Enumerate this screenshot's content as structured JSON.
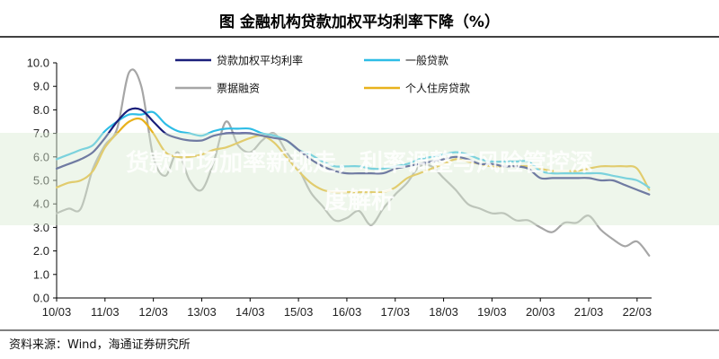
{
  "header": {
    "title": "图  金融机构贷款加权平均利率下降（%）"
  },
  "footer": {
    "source": "资料来源：Wind，海通证券研究所"
  },
  "overlay": {
    "line1": "货款市场加率新规走，利率调整与风险管控深",
    "line2": "度解析"
  },
  "colors": {
    "weighted": "#1a1f7a",
    "general": "#2ebde6",
    "bill": "#a6a6a6",
    "mortgage": "#e8b21c",
    "axis": "#000000",
    "overlay_band": "#d9ead3"
  },
  "chart_data": {
    "type": "line",
    "title": "图  金融机构贷款加权平均利率下降（%）",
    "xlabel": "",
    "ylabel": "",
    "ylim": [
      0,
      10
    ],
    "xlim": [
      2010.0,
      2022.3
    ],
    "y_ticks": [
      "0.0",
      "1.0",
      "2.0",
      "3.0",
      "4.0",
      "5.0",
      "6.0",
      "7.0",
      "8.0",
      "9.0",
      "10.0"
    ],
    "x_ticks": [
      "10/03",
      "11/03",
      "12/03",
      "13/03",
      "14/03",
      "15/03",
      "16/03",
      "17/03",
      "18/03",
      "19/03",
      "20/03",
      "21/03",
      "22/03"
    ],
    "legend_position": "top",
    "grid": false,
    "series": [
      {
        "name": "贷款加权平均利率",
        "color_key": "weighted",
        "x": [
          2010.0,
          2010.25,
          2010.5,
          2010.75,
          2011.0,
          2011.25,
          2011.5,
          2011.75,
          2012.0,
          2012.25,
          2012.5,
          2012.75,
          2013.0,
          2013.25,
          2013.5,
          2013.75,
          2014.0,
          2014.25,
          2014.5,
          2014.75,
          2015.0,
          2015.25,
          2015.5,
          2015.75,
          2016.0,
          2016.25,
          2016.5,
          2016.75,
          2017.0,
          2017.25,
          2017.5,
          2017.75,
          2018.0,
          2018.25,
          2018.5,
          2018.75,
          2019.0,
          2019.25,
          2019.5,
          2019.75,
          2020.0,
          2020.25,
          2020.5,
          2020.75,
          2021.0,
          2021.25,
          2021.5,
          2021.75,
          2022.0,
          2022.25
        ],
        "values": [
          5.5,
          5.7,
          5.9,
          6.2,
          6.8,
          7.5,
          8.0,
          8.0,
          7.5,
          7.0,
          6.8,
          6.7,
          6.7,
          6.9,
          7.0,
          7.0,
          7.0,
          6.9,
          6.8,
          6.7,
          6.3,
          5.9,
          5.6,
          5.4,
          5.3,
          5.3,
          5.3,
          5.3,
          5.5,
          5.6,
          5.7,
          5.8,
          5.9,
          6.0,
          5.9,
          5.7,
          5.7,
          5.6,
          5.6,
          5.5,
          5.1,
          5.1,
          5.1,
          5.1,
          5.1,
          5.0,
          5.0,
          4.8,
          4.6,
          4.4
        ]
      },
      {
        "name": "一般贷款",
        "color_key": "general",
        "x": [
          2010.0,
          2010.25,
          2010.5,
          2010.75,
          2011.0,
          2011.25,
          2011.5,
          2011.75,
          2012.0,
          2012.25,
          2012.5,
          2012.75,
          2013.0,
          2013.25,
          2013.5,
          2013.75,
          2014.0,
          2014.25,
          2014.5,
          2014.75,
          2015.0,
          2015.25,
          2015.5,
          2015.75,
          2016.0,
          2016.25,
          2016.5,
          2016.75,
          2017.0,
          2017.25,
          2017.5,
          2017.75,
          2018.0,
          2018.25,
          2018.5,
          2018.75,
          2019.0,
          2019.25,
          2019.5,
          2019.75,
          2020.0,
          2020.25,
          2020.5,
          2020.75,
          2021.0,
          2021.25,
          2021.5,
          2021.75,
          2022.0,
          2022.25
        ],
        "values": [
          5.9,
          6.1,
          6.3,
          6.5,
          7.1,
          7.5,
          7.8,
          7.8,
          7.9,
          7.4,
          7.1,
          7.0,
          6.9,
          7.1,
          7.2,
          7.2,
          7.2,
          7.0,
          6.9,
          6.7,
          6.3,
          6.1,
          5.8,
          5.6,
          5.6,
          5.6,
          5.5,
          5.5,
          5.6,
          5.7,
          5.9,
          6.0,
          6.1,
          6.2,
          6.1,
          5.9,
          5.8,
          5.8,
          5.8,
          5.8,
          5.4,
          5.3,
          5.3,
          5.3,
          5.3,
          5.3,
          5.2,
          5.1,
          5.0,
          4.7
        ]
      },
      {
        "name": "票据融资",
        "color_key": "bill",
        "x": [
          2010.0,
          2010.25,
          2010.5,
          2010.75,
          2011.0,
          2011.25,
          2011.5,
          2011.75,
          2012.0,
          2012.25,
          2012.5,
          2012.75,
          2013.0,
          2013.25,
          2013.5,
          2013.75,
          2014.0,
          2014.25,
          2014.5,
          2014.75,
          2015.0,
          2015.25,
          2015.5,
          2015.75,
          2016.0,
          2016.25,
          2016.5,
          2016.75,
          2017.0,
          2017.25,
          2017.5,
          2017.75,
          2018.0,
          2018.25,
          2018.5,
          2018.75,
          2019.0,
          2019.25,
          2019.5,
          2019.75,
          2020.0,
          2020.25,
          2020.5,
          2020.75,
          2021.0,
          2021.25,
          2021.5,
          2021.75,
          2022.0,
          2022.25
        ],
        "values": [
          3.6,
          3.8,
          3.8,
          5.5,
          6.5,
          7.2,
          9.6,
          9.0,
          6.0,
          5.2,
          6.2,
          5.0,
          4.6,
          5.8,
          7.5,
          6.5,
          6.2,
          6.7,
          7.0,
          6.2,
          5.5,
          4.5,
          3.9,
          3.3,
          3.4,
          3.7,
          3.1,
          3.8,
          4.4,
          4.9,
          5.6,
          5.6,
          5.1,
          4.6,
          4.0,
          3.8,
          3.6,
          3.6,
          3.3,
          3.3,
          3.0,
          2.8,
          3.2,
          3.2,
          3.5,
          2.9,
          2.5,
          2.2,
          2.4,
          1.8
        ]
      },
      {
        "name": "个人住房贷款",
        "color_key": "mortgage",
        "x": [
          2010.0,
          2010.25,
          2010.5,
          2010.75,
          2011.0,
          2011.25,
          2011.5,
          2011.75,
          2012.0,
          2012.25,
          2012.5,
          2012.75,
          2013.0,
          2013.25,
          2013.5,
          2013.75,
          2014.0,
          2014.25,
          2014.5,
          2014.75,
          2015.0,
          2015.25,
          2015.5,
          2015.75,
          2016.0,
          2016.25,
          2016.5,
          2016.75,
          2017.0,
          2017.25,
          2017.5,
          2017.75,
          2018.0,
          2018.25,
          2018.5,
          2018.75,
          2019.0,
          2019.25,
          2019.5,
          2019.75,
          2020.0,
          2020.25,
          2020.5,
          2020.75,
          2021.0,
          2021.25,
          2021.5,
          2021.75,
          2022.0,
          2022.25
        ],
        "values": [
          4.7,
          4.9,
          5.0,
          5.4,
          6.4,
          7.0,
          7.5,
          7.6,
          7.0,
          6.2,
          6.0,
          6.0,
          6.1,
          6.3,
          6.4,
          6.6,
          6.8,
          6.9,
          6.6,
          6.0,
          5.4,
          4.9,
          4.6,
          4.5,
          4.5,
          4.5,
          4.5,
          4.5,
          4.7,
          5.1,
          5.3,
          5.5,
          5.7,
          5.9,
          5.8,
          5.7,
          5.6,
          5.6,
          5.6,
          5.6,
          5.5,
          5.4,
          5.4,
          5.4,
          5.5,
          5.6,
          5.6,
          5.6,
          5.5,
          4.6
        ]
      }
    ],
    "legend": [
      {
        "label": "贷款加权平均利率",
        "color_key": "weighted"
      },
      {
        "label": "一般贷款",
        "color_key": "general"
      },
      {
        "label": "票据融资",
        "color_key": "bill"
      },
      {
        "label": "个人住房贷款",
        "color_key": "mortgage"
      }
    ]
  }
}
